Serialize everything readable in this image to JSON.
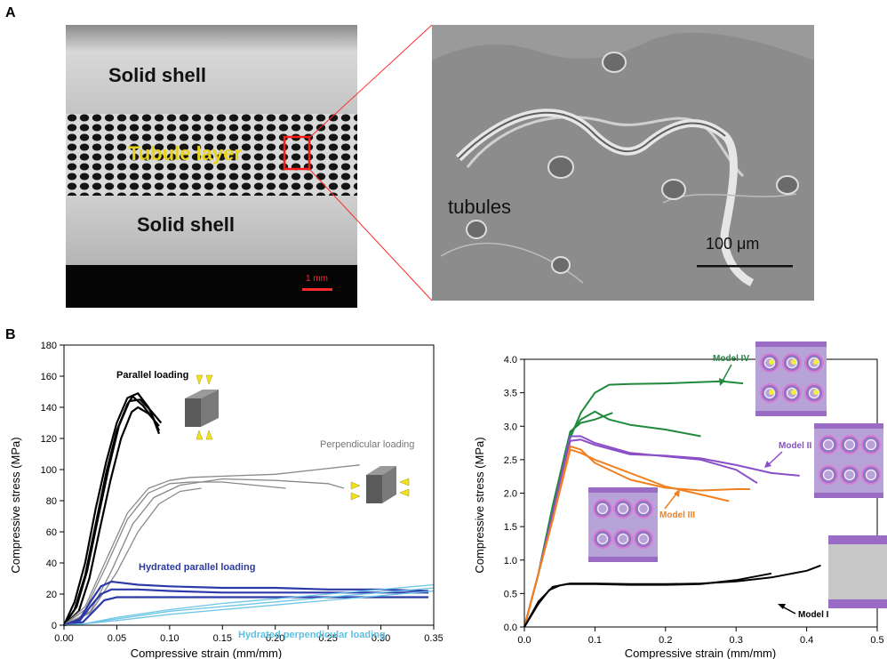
{
  "panel_a": {
    "letter": "A",
    "left_image": {
      "labels": {
        "solid_top": "Solid shell",
        "tubule": "Tubule layer",
        "solid_bottom": "Solid shell",
        "scale": "1 mm"
      }
    },
    "right_image": {
      "labels": {
        "tubules": "tubules",
        "scale": "100 μm"
      }
    }
  },
  "panel_b": {
    "letter": "B"
  },
  "chart_data": [
    {
      "type": "line",
      "xlabel": "Compressive strain (mm/mm)",
      "ylabel": "Compressive stress (MPa)",
      "xlim": [
        0,
        0.35
      ],
      "ylim": [
        0,
        180
      ],
      "xticks": [
        "0.00",
        "0.05",
        "0.10",
        "0.15",
        "0.20",
        "0.25",
        "0.30",
        "0.35"
      ],
      "yticks": [
        "0",
        "20",
        "40",
        "60",
        "80",
        "100",
        "120",
        "140",
        "160",
        "180"
      ],
      "annotations": [
        {
          "text": "Parallel loading",
          "color": "#000000"
        },
        {
          "text": "Perpendicular loading",
          "color": "#777777"
        },
        {
          "text": "Hydrated parallel loading",
          "color": "#2b3a9e"
        },
        {
          "text": "Hydrated perpendicular loading",
          "color": "#5cc0e0"
        }
      ],
      "series": [
        {
          "group": "parallel",
          "color": "#000000",
          "x": [
            0,
            0.01,
            0.02,
            0.03,
            0.04,
            0.05,
            0.06,
            0.07,
            0.08,
            0.09
          ],
          "y": [
            0,
            15,
            40,
            75,
            105,
            130,
            146,
            149,
            140,
            125
          ]
        },
        {
          "group": "parallel",
          "color": "#000000",
          "x": [
            0,
            0.01,
            0.02,
            0.03,
            0.04,
            0.05,
            0.06,
            0.065,
            0.075,
            0.085,
            0.09
          ],
          "y": [
            0,
            10,
            32,
            65,
            98,
            125,
            142,
            147,
            141,
            132,
            123
          ]
        },
        {
          "group": "parallel",
          "color": "#000000",
          "x": [
            0,
            0.012,
            0.022,
            0.032,
            0.042,
            0.052,
            0.062,
            0.072,
            0.082,
            0.092
          ],
          "y": [
            0,
            12,
            35,
            68,
            100,
            128,
            144,
            145,
            138,
            130
          ]
        },
        {
          "group": "parallel",
          "color": "#000000",
          "x": [
            0,
            0.014,
            0.024,
            0.034,
            0.044,
            0.054,
            0.064,
            0.07,
            0.08,
            0.09
          ],
          "y": [
            0,
            9,
            30,
            62,
            93,
            120,
            137,
            140,
            136,
            128
          ]
        },
        {
          "group": "perpendicular",
          "color": "#888888",
          "x": [
            0,
            0.02,
            0.04,
            0.06,
            0.08,
            0.1,
            0.12,
            0.16,
            0.2,
            0.24,
            0.28
          ],
          "y": [
            0,
            12,
            42,
            72,
            88,
            93,
            95,
            96,
            97,
            100,
            103
          ]
        },
        {
          "group": "perpendicular",
          "color": "#888888",
          "x": [
            0,
            0.02,
            0.04,
            0.06,
            0.08,
            0.1,
            0.12,
            0.15,
            0.18,
            0.21
          ],
          "y": [
            0,
            10,
            38,
            68,
            85,
            91,
            92,
            92,
            90,
            88
          ]
        },
        {
          "group": "perpendicular",
          "color": "#888888",
          "x": [
            0,
            0.025,
            0.045,
            0.065,
            0.085,
            0.11,
            0.15,
            0.2,
            0.25,
            0.265
          ],
          "y": [
            0,
            9,
            35,
            65,
            82,
            90,
            94,
            93,
            91,
            88
          ]
        },
        {
          "group": "perpendicular",
          "color": "#888888",
          "x": [
            0,
            0.025,
            0.05,
            0.07,
            0.09,
            0.11,
            0.13
          ],
          "y": [
            0,
            8,
            34,
            60,
            78,
            86,
            88
          ]
        },
        {
          "group": "hydrated_parallel",
          "color": "#2b3aa8",
          "x": [
            0,
            0.015,
            0.025,
            0.035,
            0.045,
            0.07,
            0.1,
            0.15,
            0.2,
            0.25,
            0.3,
            0.345
          ],
          "y": [
            0,
            4,
            15,
            25,
            28,
            26,
            25,
            24,
            24,
            23,
            23,
            22
          ]
        },
        {
          "group": "hydrated_parallel",
          "color": "#2b3aa8",
          "x": [
            0,
            0.015,
            0.025,
            0.035,
            0.045,
            0.07,
            0.1,
            0.15,
            0.2,
            0.25,
            0.3,
            0.345
          ],
          "y": [
            0,
            3,
            12,
            20,
            23,
            23,
            22,
            21,
            21,
            21,
            21,
            21
          ]
        },
        {
          "group": "hydrated_parallel",
          "color": "#2b3aa8",
          "x": [
            0,
            0.018,
            0.028,
            0.038,
            0.05,
            0.07,
            0.1,
            0.15,
            0.2,
            0.25,
            0.3,
            0.345
          ],
          "y": [
            0,
            2,
            9,
            16,
            18,
            18,
            18,
            18,
            18,
            18,
            18,
            18
          ]
        },
        {
          "group": "hydrated_perpendicular",
          "color": "#6fc6e6",
          "x": [
            0,
            0.02,
            0.05,
            0.1,
            0.15,
            0.2,
            0.25,
            0.3,
            0.35
          ],
          "y": [
            0,
            1,
            5,
            10,
            14,
            17,
            20,
            23,
            26
          ]
        },
        {
          "group": "hydrated_perpendicular",
          "color": "#6fc6e6",
          "x": [
            0,
            0.02,
            0.05,
            0.1,
            0.15,
            0.2,
            0.25,
            0.3,
            0.35
          ],
          "y": [
            0,
            1,
            4,
            9,
            12,
            15,
            18,
            21,
            24
          ]
        },
        {
          "group": "hydrated_perpendicular",
          "color": "#6fc6e6",
          "x": [
            0,
            0.02,
            0.05,
            0.1,
            0.15,
            0.2,
            0.25,
            0.3,
            0.35
          ],
          "y": [
            0,
            1,
            3,
            7,
            10,
            13,
            16,
            19,
            22
          ]
        }
      ]
    },
    {
      "type": "line",
      "xlabel": "Compressive strain (mm/mm)",
      "ylabel": "Compressive stress (MPa)",
      "xlim": [
        0,
        0.5
      ],
      "ylim": [
        0,
        4.0
      ],
      "xticks": [
        "0.0",
        "0.1",
        "0.2",
        "0.3",
        "0.4",
        "0.5"
      ],
      "yticks": [
        "0.0",
        "0.5",
        "1.0",
        "1.5",
        "2.0",
        "2.5",
        "3.0",
        "3.5",
        "4.0"
      ],
      "annotations": [
        {
          "text": "Model IV",
          "color": "#1f8a3c"
        },
        {
          "text": "Model II",
          "color": "#8a4fc8"
        },
        {
          "text": "Model III",
          "color": "#f08020"
        },
        {
          "text": "Model I",
          "color": "#000000"
        }
      ],
      "series": [
        {
          "group": "Model IV",
          "color": "#1f8a3c",
          "x": [
            0,
            0.02,
            0.04,
            0.06,
            0.08,
            0.1,
            0.12,
            0.15,
            0.2,
            0.25,
            0.28,
            0.31
          ],
          "y": [
            0,
            0.8,
            1.8,
            2.7,
            3.2,
            3.5,
            3.62,
            3.63,
            3.64,
            3.66,
            3.67,
            3.64
          ]
        },
        {
          "group": "Model IV",
          "color": "#1f8a3c",
          "x": [
            0,
            0.02,
            0.04,
            0.065,
            0.08,
            0.1,
            0.12,
            0.15,
            0.2,
            0.25
          ],
          "y": [
            0,
            0.8,
            1.8,
            2.9,
            3.1,
            3.22,
            3.1,
            3.02,
            2.95,
            2.85
          ]
        },
        {
          "group": "Model IV",
          "color": "#1f8a3c",
          "x": [
            0,
            0.02,
            0.04,
            0.065,
            0.08,
            0.1,
            0.125
          ],
          "y": [
            0,
            0.8,
            1.8,
            2.92,
            3.05,
            3.1,
            3.2
          ]
        },
        {
          "group": "Model II",
          "color": "#8a4fc8",
          "x": [
            0,
            0.02,
            0.04,
            0.065,
            0.08,
            0.1,
            0.15,
            0.2,
            0.25,
            0.3,
            0.35,
            0.39
          ],
          "y": [
            0,
            0.8,
            1.7,
            2.78,
            2.8,
            2.72,
            2.58,
            2.56,
            2.52,
            2.42,
            2.3,
            2.26
          ]
        },
        {
          "group": "Model II",
          "color": "#8a4fc8",
          "x": [
            0,
            0.02,
            0.04,
            0.065,
            0.08,
            0.1,
            0.15,
            0.2,
            0.25,
            0.3,
            0.33
          ],
          "y": [
            0,
            0.8,
            1.7,
            2.85,
            2.85,
            2.75,
            2.6,
            2.55,
            2.5,
            2.35,
            2.15
          ]
        },
        {
          "group": "Model III",
          "color": "#f08020",
          "x": [
            0,
            0.02,
            0.04,
            0.065,
            0.08,
            0.1,
            0.15,
            0.2,
            0.25,
            0.29
          ],
          "y": [
            0,
            0.8,
            1.6,
            2.65,
            2.6,
            2.5,
            2.3,
            2.1,
            1.98,
            1.88
          ]
        },
        {
          "group": "Model III",
          "color": "#f08020",
          "x": [
            0,
            0.02,
            0.04,
            0.065,
            0.08,
            0.1,
            0.15,
            0.2,
            0.25,
            0.3,
            0.32
          ],
          "y": [
            0,
            0.8,
            1.6,
            2.7,
            2.65,
            2.45,
            2.2,
            2.08,
            2.04,
            2.06,
            2.06
          ]
        },
        {
          "group": "Model I",
          "color": "#000000",
          "x": [
            0,
            0.02,
            0.035,
            0.05,
            0.065,
            0.1,
            0.15,
            0.2,
            0.25,
            0.3,
            0.35,
            0.4,
            0.42
          ],
          "y": [
            0,
            0.35,
            0.55,
            0.62,
            0.65,
            0.65,
            0.64,
            0.64,
            0.65,
            0.68,
            0.74,
            0.84,
            0.92
          ]
        },
        {
          "group": "Model I",
          "color": "#000000",
          "x": [
            0,
            0.02,
            0.04,
            0.06,
            0.1,
            0.15,
            0.2,
            0.25,
            0.3,
            0.35
          ],
          "y": [
            0,
            0.38,
            0.6,
            0.64,
            0.64,
            0.63,
            0.63,
            0.64,
            0.7,
            0.8
          ]
        }
      ]
    }
  ]
}
